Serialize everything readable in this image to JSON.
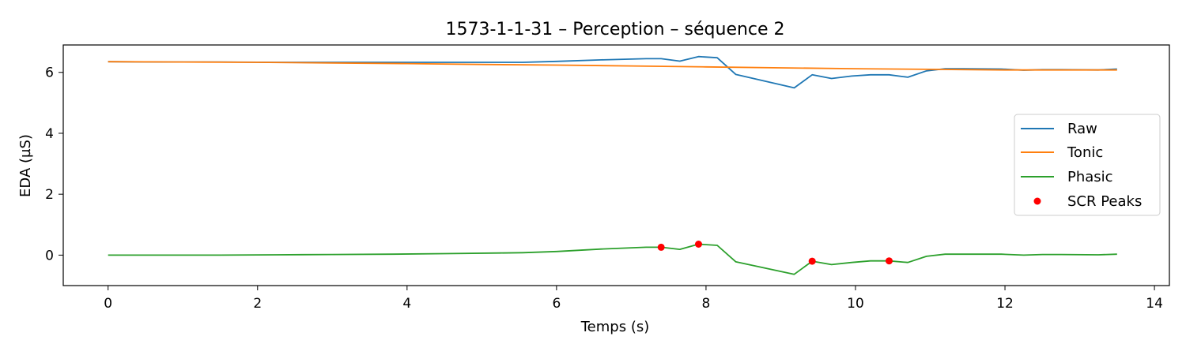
{
  "chart_data": {
    "type": "line",
    "title": "1573-1-1-31 – Perception – séquence 2",
    "xlabel": "Temps (s)",
    "ylabel": "EDA (µS)",
    "xlim": [
      -0.6,
      14.2
    ],
    "ylim": [
      -1.0,
      6.9
    ],
    "xticks": [
      "0",
      "2",
      "4",
      "6",
      "8",
      "10",
      "12",
      "14"
    ],
    "yticks": [
      "0",
      "2",
      "4",
      "6"
    ],
    "grid": false,
    "legend_position": "center-right",
    "series": [
      {
        "name": "Raw",
        "color": "#1f77b4",
        "x": [
          0,
          0.75,
          1.5,
          2.25,
          3.0,
          3.8,
          4.5,
          5.25,
          5.55,
          6.0,
          6.6,
          7.2,
          7.4,
          7.65,
          7.9,
          8.15,
          8.4,
          9.18,
          9.42,
          9.68,
          9.95,
          10.2,
          10.45,
          10.7,
          10.95,
          11.2,
          11.45,
          11.95,
          12.25,
          12.5,
          12.75,
          13.25,
          13.5
        ],
        "y": [
          6.35,
          6.34,
          6.34,
          6.33,
          6.33,
          6.33,
          6.33,
          6.33,
          6.33,
          6.36,
          6.41,
          6.45,
          6.45,
          6.37,
          6.52,
          6.48,
          5.93,
          5.49,
          5.92,
          5.8,
          5.88,
          5.92,
          5.92,
          5.84,
          6.05,
          6.12,
          6.12,
          6.11,
          6.07,
          6.09,
          6.09,
          6.08,
          6.11
        ]
      },
      {
        "name": "Tonic",
        "color": "#ff7f0e",
        "x": [
          0,
          1,
          2,
          3,
          4,
          5,
          6,
          7,
          8,
          9,
          10,
          11,
          12,
          13,
          13.5
        ],
        "y": [
          6.35,
          6.34,
          6.33,
          6.31,
          6.29,
          6.26,
          6.24,
          6.21,
          6.18,
          6.15,
          6.12,
          6.1,
          6.08,
          6.08,
          6.08
        ]
      },
      {
        "name": "Phasic",
        "color": "#2ca02c",
        "x": [
          0,
          0.75,
          1.5,
          2.25,
          3.0,
          3.8,
          4.5,
          5.25,
          5.55,
          6.0,
          6.6,
          7.2,
          7.4,
          7.65,
          7.9,
          8.15,
          8.4,
          9.18,
          9.42,
          9.68,
          9.95,
          10.2,
          10.45,
          10.7,
          10.95,
          11.2,
          11.45,
          11.95,
          12.25,
          12.5,
          12.75,
          13.25,
          13.5
        ],
        "y": [
          0.0,
          0.0,
          0.0,
          0.01,
          0.02,
          0.03,
          0.05,
          0.07,
          0.08,
          0.12,
          0.2,
          0.26,
          0.26,
          0.19,
          0.36,
          0.32,
          -0.22,
          -0.63,
          -0.2,
          -0.31,
          -0.24,
          -0.19,
          -0.19,
          -0.24,
          -0.04,
          0.03,
          0.03,
          0.03,
          0.0,
          0.02,
          0.02,
          0.01,
          0.03
        ]
      }
    ],
    "scatter": {
      "name": "SCR Peaks",
      "color": "#ff0000",
      "x": [
        7.4,
        7.9,
        9.42,
        10.45
      ],
      "y": [
        0.26,
        0.36,
        -0.2,
        -0.19
      ]
    }
  }
}
